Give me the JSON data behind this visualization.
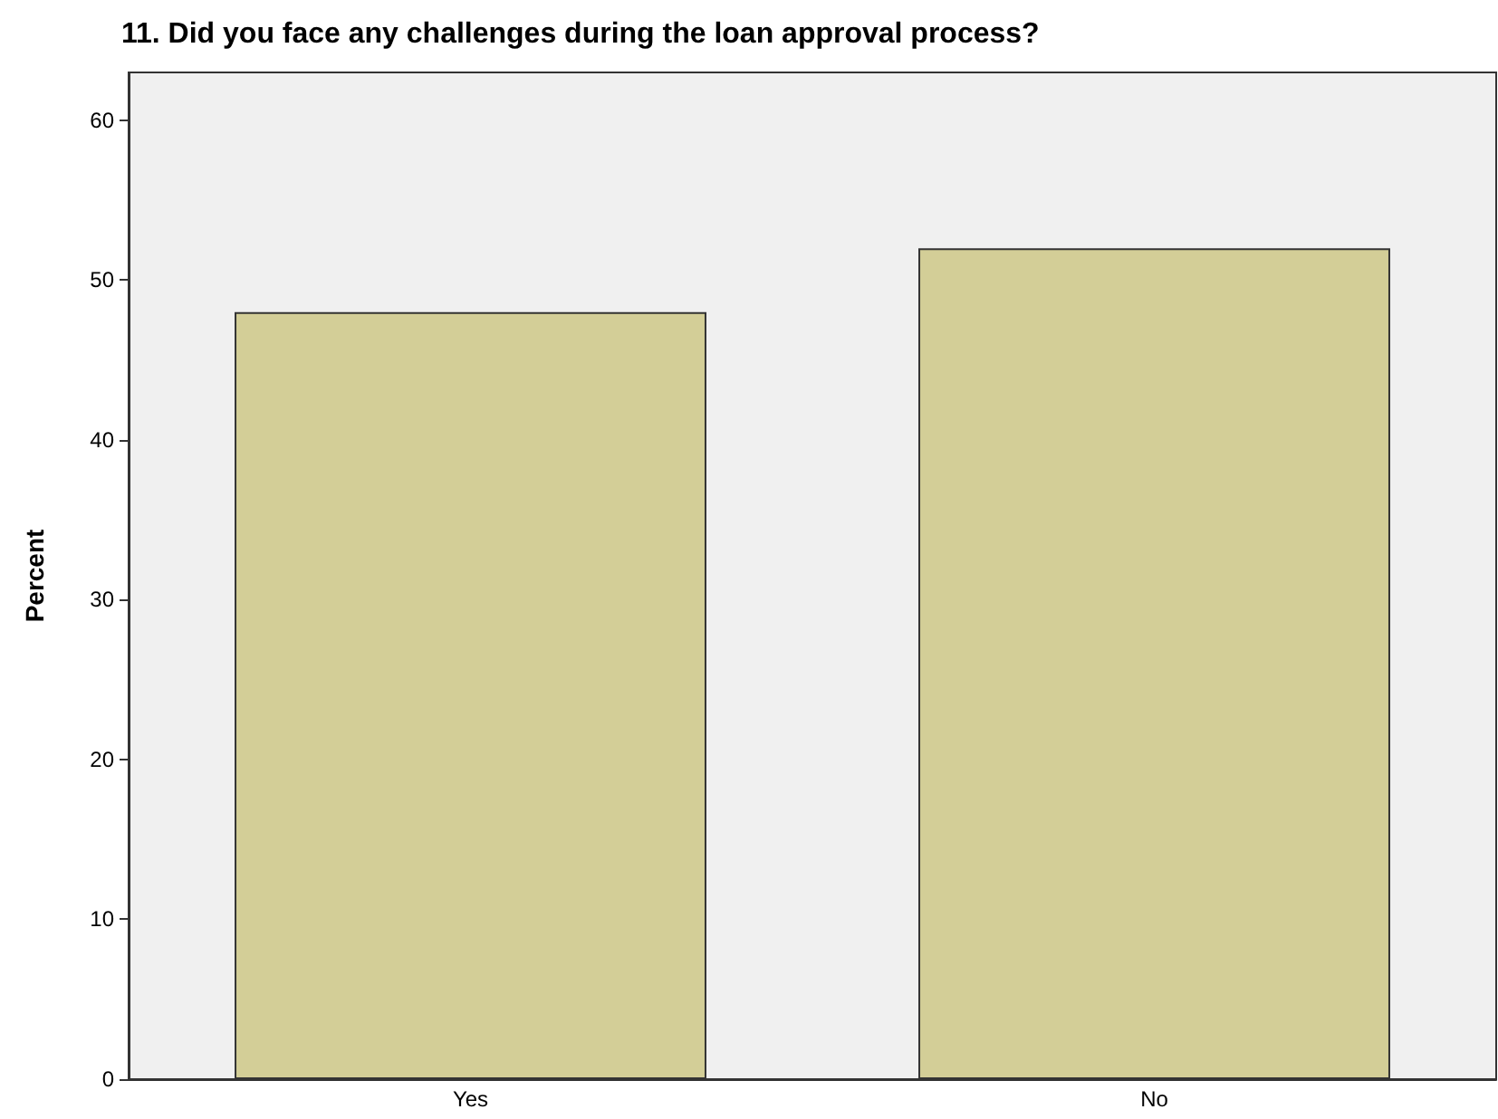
{
  "chart_data": {
    "type": "bar",
    "title": "11. Did you face any challenges during the loan approval process?",
    "ylabel": "Percent",
    "categories": [
      "Yes",
      "No"
    ],
    "series": [
      {
        "color": "#d3ce97",
        "values": [
          48,
          52
        ]
      }
    ],
    "ylim": [
      0,
      63
    ],
    "yticks": [
      0,
      10,
      20,
      30,
      40,
      50,
      60
    ],
    "grid": false
  }
}
